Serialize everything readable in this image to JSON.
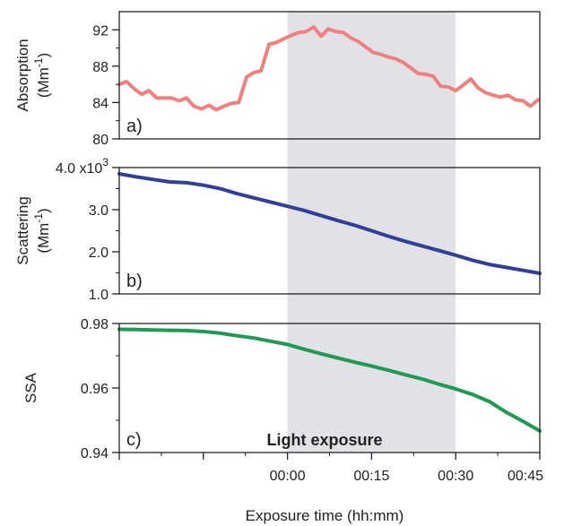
{
  "colors": {
    "absorption": "#f08080",
    "scattering": "#2f3f9a",
    "ssa": "#1f9a54",
    "shade": "#e2e2e6",
    "axis": "#222222"
  },
  "annotations": {
    "shade_label": "Light exposure",
    "scattering_exponent_base": "4.0 x10",
    "scattering_exponent": "3"
  },
  "chart_data": [
    {
      "type": "line",
      "panel_label": "a)",
      "ylabel": "Absorption",
      "yunit_base": "(Mm",
      "yunit_exp": "-1",
      "yunit_close": ")",
      "ylim": [
        80,
        94
      ],
      "yticks": [
        80,
        84,
        88,
        92
      ],
      "yticklabels": [
        "80",
        "84",
        "88",
        "92"
      ],
      "xlim": [
        -30,
        45
      ],
      "shade": [
        0,
        30
      ],
      "series": [
        {
          "color_key": "absorption",
          "x": [
            -30,
            -28.7,
            -27.3,
            -26,
            -24.7,
            -23.3,
            -22,
            -20.7,
            -19.3,
            -18,
            -16.7,
            -15.3,
            -14,
            -12.7,
            -11.3,
            -10,
            -8.7,
            -7.3,
            -6,
            -4.7,
            -3.3,
            -2,
            -0.7,
            0.7,
            2,
            3.3,
            4.7,
            6,
            7.3,
            8.7,
            10,
            11.3,
            12.7,
            14,
            15.3,
            16.7,
            18,
            19.3,
            20.7,
            22,
            23.3,
            24.7,
            26,
            27.3,
            28.7,
            30,
            31.3,
            32.7,
            34,
            35.3,
            36.7,
            38,
            39.3,
            40.7,
            42,
            43.3,
            44.7
          ],
          "y": [
            86.0,
            86.3,
            85.5,
            84.9,
            85.3,
            84.5,
            84.5,
            84.5,
            84.2,
            84.5,
            83.6,
            83.3,
            83.7,
            83.2,
            83.6,
            83.9,
            84.0,
            86.8,
            87.3,
            87.5,
            90.4,
            90.6,
            91.0,
            91.4,
            91.7,
            91.8,
            92.3,
            91.3,
            92.1,
            91.8,
            91.7,
            91.1,
            90.7,
            90.1,
            89.5,
            89.3,
            89.0,
            88.8,
            88.4,
            87.8,
            87.2,
            87.1,
            86.9,
            85.8,
            85.7,
            85.3,
            85.9,
            86.6,
            85.6,
            85.1,
            84.8,
            84.6,
            84.8,
            84.3,
            84.2,
            83.6,
            84.3
          ]
        }
      ]
    },
    {
      "type": "line",
      "panel_label": "b)",
      "ylabel": "Scattering",
      "yunit_base": "(Mm",
      "yunit_exp": "-1",
      "yunit_close": ")",
      "ylim": [
        1.0,
        4.0
      ],
      "yticks": [
        1.0,
        2.0,
        3.0,
        4.0
      ],
      "yticklabels": [
        "1.0",
        "2.0",
        "3.0",
        ""
      ],
      "xlim": [
        -30,
        45
      ],
      "shade": [
        0,
        30
      ],
      "series": [
        {
          "color_key": "scattering",
          "x": [
            -30,
            -27,
            -24,
            -21,
            -18,
            -15,
            -12,
            -9,
            -6,
            -3,
            0,
            3,
            6,
            9,
            12,
            15,
            18,
            21,
            24,
            27,
            30,
            33,
            36,
            39,
            42,
            45
          ],
          "y": [
            3.85,
            3.78,
            3.72,
            3.66,
            3.64,
            3.58,
            3.5,
            3.38,
            3.28,
            3.18,
            3.08,
            2.98,
            2.86,
            2.74,
            2.63,
            2.5,
            2.37,
            2.25,
            2.14,
            2.03,
            1.92,
            1.8,
            1.7,
            1.63,
            1.56,
            1.49
          ]
        }
      ]
    },
    {
      "type": "line",
      "panel_label": "c)",
      "ylabel": "SSA",
      "ylim": [
        0.94,
        0.98
      ],
      "yticks": [
        0.94,
        0.96,
        0.98
      ],
      "yticklabels": [
        "0.94",
        "0.96",
        "0.98"
      ],
      "xlim": [
        -30,
        45
      ],
      "xticks": [
        0,
        15,
        30,
        45
      ],
      "xticklabels": [
        "00:00",
        "00:15",
        "00:30",
        "00:45"
      ],
      "xlabel": "Exposure time (hh:mm)",
      "shade": [
        0,
        30
      ],
      "series": [
        {
          "color_key": "ssa",
          "x": [
            -30,
            -27,
            -24,
            -21,
            -18,
            -15,
            -12,
            -9,
            -6,
            -3,
            0,
            3,
            6,
            9,
            12,
            15,
            18,
            21,
            24,
            27,
            30,
            33,
            36,
            39,
            42,
            45
          ],
          "y": [
            0.9782,
            0.9781,
            0.978,
            0.9779,
            0.9778,
            0.9775,
            0.977,
            0.9762,
            0.9755,
            0.9745,
            0.9735,
            0.972,
            0.9706,
            0.9693,
            0.968,
            0.9668,
            0.9655,
            0.9641,
            0.9628,
            0.9612,
            0.9597,
            0.958,
            0.9558,
            0.9525,
            0.9497,
            0.9467
          ]
        }
      ]
    }
  ]
}
